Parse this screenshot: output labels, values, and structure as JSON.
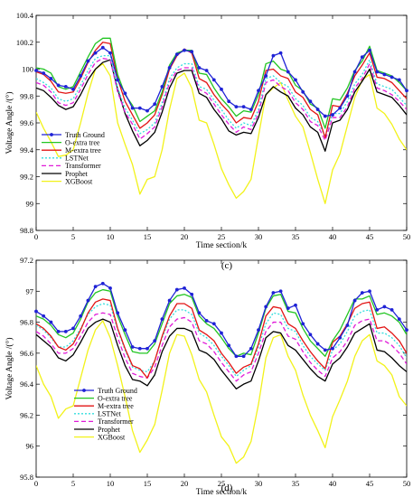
{
  "chart_data": [
    {
      "type": "line",
      "panel_label": "(c)",
      "xlabel": "Time section/k",
      "ylabel": "Voltage Angle /(°)",
      "xlim": [
        0,
        50
      ],
      "ylim": [
        98.8,
        100.4
      ],
      "xticks": [
        0,
        5,
        10,
        15,
        20,
        25,
        30,
        35,
        40,
        45,
        50
      ],
      "yticks": [
        98.8,
        99,
        99.2,
        99.4,
        99.6,
        99.8,
        100,
        100.2,
        100.4
      ],
      "ytick_labels": [
        "98.8",
        "99",
        "99.2",
        "99.4",
        "99.6",
        "99.8",
        "100",
        "100.2",
        "100.4"
      ],
      "legend_position": "left-middle",
      "x": [
        0,
        1,
        2,
        3,
        4,
        5,
        6,
        7,
        8,
        9,
        10,
        11,
        12,
        13,
        14,
        15,
        16,
        17,
        18,
        19,
        20,
        21,
        22,
        23,
        24,
        25,
        26,
        27,
        28,
        29,
        30,
        31,
        32,
        33,
        34,
        35,
        36,
        37,
        38,
        39,
        40,
        41,
        42,
        43,
        44,
        45,
        46,
        47,
        48,
        49,
        50
      ],
      "series": [
        {
          "name": "Truth Ground",
          "color": "#1f22d6",
          "marker": true,
          "values": [
            99.99,
            99.97,
            99.93,
            99.88,
            99.87,
            99.85,
            99.95,
            100.06,
            100.12,
            100.16,
            100.12,
            99.92,
            99.82,
            99.71,
            99.71,
            99.69,
            99.74,
            99.87,
            100.01,
            100.11,
            100.14,
            100.13,
            100.01,
            99.99,
            99.92,
            99.85,
            99.76,
            99.72,
            99.72,
            99.7,
            99.84,
            99.95,
            100.1,
            100.12,
            99.98,
            99.92,
            99.83,
            99.76,
            99.7,
            99.65,
            99.66,
            99.71,
            99.8,
            99.98,
            100.09,
            100.14,
            99.98,
            99.96,
            99.94,
            99.92,
            99.84
          ]
        },
        {
          "name": "O-extra tree",
          "color": "#22c522",
          "marker": false,
          "values": [
            100.01,
            100.0,
            99.97,
            99.87,
            99.85,
            99.87,
            99.98,
            100.09,
            100.19,
            100.23,
            100.23,
            99.96,
            99.81,
            99.73,
            99.61,
            99.65,
            99.69,
            99.83,
            100.03,
            100.12,
            100.14,
            100.14,
            99.97,
            99.96,
            99.86,
            99.78,
            99.72,
            99.65,
            99.69,
            99.68,
            99.81,
            100.04,
            100.06,
            100.0,
            99.98,
            99.88,
            99.84,
            99.74,
            99.71,
            99.56,
            99.78,
            99.77,
            99.86,
            99.99,
            100.06,
            100.17,
            99.99,
            99.97,
            99.95,
            99.9,
            99.84
          ]
        },
        {
          "name": "M-extra tree",
          "color": "#e21414",
          "marker": false,
          "values": [
            99.98,
            99.96,
            99.91,
            99.83,
            99.82,
            99.83,
            99.93,
            100.05,
            100.14,
            100.2,
            100.19,
            99.93,
            99.76,
            99.66,
            99.56,
            99.6,
            99.66,
            99.81,
            100.0,
            100.1,
            100.15,
            100.12,
            99.93,
            99.9,
            99.81,
            99.74,
            99.68,
            99.6,
            99.64,
            99.63,
            99.76,
            99.99,
            100.0,
            99.95,
            99.93,
            99.83,
            99.79,
            99.7,
            99.66,
            99.49,
            99.73,
            99.72,
            99.82,
            99.95,
            100.03,
            100.12,
            99.94,
            99.93,
            99.9,
            99.84,
            99.78
          ]
        },
        {
          "name": "LSTNet",
          "color": "#33dede",
          "marker": false,
          "dash": "2,2",
          "values": [
            99.93,
            99.9,
            99.86,
            99.78,
            99.76,
            99.78,
            99.88,
            99.99,
            100.08,
            100.1,
            100.1,
            99.86,
            99.71,
            99.62,
            99.52,
            99.55,
            99.6,
            99.75,
            99.93,
            100.01,
            100.04,
            100.04,
            99.87,
            99.85,
            99.77,
            99.7,
            99.62,
            99.56,
            99.6,
            99.58,
            99.7,
            99.93,
            99.95,
            99.9,
            99.87,
            99.78,
            99.73,
            99.64,
            99.61,
            99.5,
            99.67,
            99.67,
            99.76,
            99.89,
            99.96,
            100.07,
            99.89,
            99.87,
            99.85,
            99.79,
            99.73
          ]
        },
        {
          "name": "Transformer",
          "color": "#e01bd8",
          "marker": false,
          "dash": "5,3",
          "values": [
            99.9,
            99.88,
            99.83,
            99.75,
            99.73,
            99.75,
            99.85,
            99.96,
            100.05,
            100.08,
            100.07,
            99.83,
            99.68,
            99.59,
            99.48,
            99.52,
            99.57,
            99.72,
            99.9,
            99.99,
            100.01,
            100.01,
            99.85,
            99.82,
            99.74,
            99.66,
            99.59,
            99.53,
            99.57,
            99.55,
            99.67,
            99.9,
            99.92,
            99.87,
            99.84,
            99.75,
            99.7,
            99.61,
            99.58,
            99.47,
            99.64,
            99.64,
            99.72,
            99.86,
            99.93,
            100.04,
            99.86,
            99.84,
            99.81,
            99.76,
            99.7
          ]
        },
        {
          "name": "Prophet",
          "color": "#000000",
          "marker": false,
          "values": [
            99.86,
            99.84,
            99.79,
            99.73,
            99.7,
            99.72,
            99.81,
            99.92,
            100.0,
            100.05,
            100.07,
            99.85,
            99.67,
            99.54,
            99.43,
            99.47,
            99.53,
            99.68,
            99.86,
            99.97,
            99.99,
            99.99,
            99.82,
            99.79,
            99.7,
            99.63,
            99.54,
            99.51,
            99.53,
            99.52,
            99.64,
            99.81,
            99.87,
            99.83,
            99.8,
            99.71,
            99.66,
            99.57,
            99.53,
            99.39,
            99.6,
            99.62,
            99.7,
            99.83,
            99.91,
            100.0,
            99.83,
            99.81,
            99.79,
            99.73,
            99.66
          ]
        },
        {
          "name": "XGBoost",
          "color": "#f2f21a",
          "marker": false,
          "values": [
            99.68,
            99.56,
            99.46,
            99.35,
            99.36,
            99.4,
            99.6,
            99.82,
            100.0,
            100.04,
            99.95,
            99.6,
            99.44,
            99.29,
            99.07,
            99.18,
            99.2,
            99.4,
            99.7,
            99.93,
            99.97,
            99.86,
            99.62,
            99.6,
            99.44,
            99.26,
            99.14,
            99.04,
            99.09,
            99.18,
            99.5,
            99.81,
            99.86,
            99.9,
            99.77,
            99.65,
            99.57,
            99.38,
            99.18,
            99.0,
            99.25,
            99.37,
            99.58,
            99.79,
            99.92,
            99.96,
            99.71,
            99.67,
            99.59,
            99.48,
            99.4
          ]
        }
      ]
    },
    {
      "type": "line",
      "panel_label": "(d)",
      "xlabel": "Time section/k",
      "ylabel": "Voltage Angle /(°)",
      "xlim": [
        0,
        50
      ],
      "ylim": [
        95.8,
        97.2
      ],
      "xticks": [
        0,
        5,
        10,
        15,
        20,
        25,
        30,
        35,
        40,
        45,
        50
      ],
      "yticks": [
        95.8,
        96,
        96.2,
        96.4,
        96.6,
        96.8,
        97,
        97.2
      ],
      "ytick_labels": [
        "95.8",
        "96",
        "96.2",
        "96.4",
        "96.6",
        "96.8",
        "97",
        "97.2"
      ],
      "legend_position": "bottom-left",
      "x": [
        0,
        1,
        2,
        3,
        4,
        5,
        6,
        7,
        8,
        9,
        10,
        11,
        12,
        13,
        14,
        15,
        16,
        17,
        18,
        19,
        20,
        21,
        22,
        23,
        24,
        25,
        26,
        27,
        28,
        29,
        30,
        31,
        32,
        33,
        34,
        35,
        36,
        37,
        38,
        39,
        40,
        41,
        42,
        43,
        44,
        45,
        46,
        47,
        48,
        49,
        50
      ],
      "series": [
        {
          "name": "Truth Ground",
          "color": "#1f22d6",
          "marker": true,
          "values": [
            96.87,
            96.84,
            96.8,
            96.74,
            96.74,
            96.76,
            96.84,
            96.94,
            97.03,
            97.05,
            97.02,
            96.86,
            96.75,
            96.64,
            96.63,
            96.63,
            96.68,
            96.82,
            96.94,
            97.01,
            97.02,
            96.98,
            96.86,
            96.81,
            96.79,
            96.73,
            96.65,
            96.58,
            96.58,
            96.63,
            96.75,
            96.9,
            96.99,
            97.0,
            96.89,
            96.91,
            96.79,
            96.72,
            96.66,
            96.62,
            96.63,
            96.7,
            96.78,
            96.94,
            96.99,
            97.0,
            96.88,
            96.9,
            96.88,
            96.82,
            96.75
          ]
        },
        {
          "name": "O-extra tree",
          "color": "#22c522",
          "marker": false,
          "values": [
            96.84,
            96.82,
            96.78,
            96.72,
            96.7,
            96.73,
            96.82,
            96.93,
            96.99,
            97.01,
            97.0,
            96.84,
            96.72,
            96.61,
            96.6,
            96.6,
            96.66,
            96.79,
            96.92,
            96.97,
            96.98,
            96.96,
            96.84,
            96.79,
            96.76,
            96.7,
            96.63,
            96.58,
            96.6,
            96.59,
            96.73,
            96.89,
            96.97,
            96.98,
            96.87,
            96.86,
            96.76,
            96.68,
            96.63,
            96.58,
            96.68,
            96.75,
            96.85,
            96.95,
            96.95,
            96.97,
            96.85,
            96.86,
            96.84,
            96.8,
            96.72
          ]
        },
        {
          "name": "M-extra tree",
          "color": "#e21414",
          "marker": false,
          "values": [
            96.79,
            96.76,
            96.71,
            96.64,
            96.62,
            96.66,
            96.75,
            96.86,
            96.93,
            96.95,
            96.94,
            96.76,
            96.63,
            96.52,
            96.5,
            96.44,
            96.55,
            96.71,
            96.84,
            96.92,
            96.92,
            96.89,
            96.75,
            96.72,
            96.68,
            96.6,
            96.54,
            96.47,
            96.51,
            96.53,
            96.66,
            96.84,
            96.9,
            96.89,
            96.79,
            96.76,
            96.68,
            96.61,
            96.55,
            96.5,
            96.67,
            96.71,
            96.79,
            96.89,
            96.92,
            96.93,
            96.76,
            96.77,
            96.73,
            96.68,
            96.6
          ]
        },
        {
          "name": "LSTNet",
          "color": "#33dede",
          "marker": false,
          "dash": "2,2",
          "values": [
            96.78,
            96.75,
            96.7,
            96.64,
            96.64,
            96.68,
            96.76,
            96.85,
            96.9,
            96.92,
            96.91,
            96.75,
            96.62,
            96.51,
            96.49,
            96.48,
            96.55,
            96.7,
            96.82,
            96.88,
            96.88,
            96.85,
            96.73,
            96.7,
            96.65,
            96.58,
            96.52,
            96.45,
            96.49,
            96.52,
            96.64,
            96.79,
            96.86,
            96.85,
            96.76,
            96.74,
            96.65,
            96.58,
            96.53,
            96.49,
            96.62,
            96.66,
            96.74,
            96.84,
            96.87,
            96.88,
            96.73,
            96.73,
            96.7,
            96.65,
            96.57
          ]
        },
        {
          "name": "Transformer",
          "color": "#e01bd8",
          "marker": false,
          "dash": "5,3",
          "values": [
            96.74,
            96.71,
            96.66,
            96.6,
            96.6,
            96.63,
            96.71,
            96.8,
            96.85,
            96.86,
            96.85,
            96.7,
            96.57,
            96.47,
            96.45,
            96.44,
            96.51,
            96.65,
            96.77,
            96.82,
            96.83,
            96.8,
            96.68,
            96.66,
            96.61,
            96.54,
            96.48,
            96.42,
            96.46,
            96.48,
            96.6,
            96.74,
            96.8,
            96.8,
            96.71,
            96.69,
            96.61,
            96.54,
            96.49,
            96.45,
            96.57,
            96.61,
            96.68,
            96.78,
            96.81,
            96.82,
            96.68,
            96.68,
            96.65,
            96.6,
            96.53
          ]
        },
        {
          "name": "Prophet",
          "color": "#000000",
          "marker": false,
          "values": [
            96.72,
            96.68,
            96.64,
            96.57,
            96.55,
            96.59,
            96.67,
            96.76,
            96.8,
            96.82,
            96.8,
            96.65,
            96.52,
            96.43,
            96.42,
            96.39,
            96.46,
            96.61,
            96.71,
            96.76,
            96.76,
            96.74,
            96.62,
            96.6,
            96.56,
            96.49,
            96.43,
            96.37,
            96.4,
            96.42,
            96.55,
            96.7,
            96.74,
            96.73,
            96.65,
            96.62,
            96.56,
            96.5,
            96.45,
            96.42,
            96.53,
            96.57,
            96.64,
            96.73,
            96.76,
            96.79,
            96.62,
            96.61,
            96.57,
            96.52,
            96.48
          ]
        },
        {
          "name": "XGBoost",
          "color": "#f2f21a",
          "marker": false,
          "values": [
            96.52,
            96.4,
            96.32,
            96.18,
            96.24,
            96.26,
            96.44,
            96.62,
            96.75,
            96.81,
            96.7,
            96.52,
            96.32,
            96.1,
            95.96,
            96.04,
            96.14,
            96.36,
            96.6,
            96.72,
            96.71,
            96.59,
            96.43,
            96.35,
            96.2,
            96.06,
            96.0,
            95.89,
            95.93,
            96.03,
            96.27,
            96.57,
            96.7,
            96.72,
            96.58,
            96.49,
            96.33,
            96.2,
            96.1,
            95.99,
            96.19,
            96.3,
            96.42,
            96.58,
            96.68,
            96.72,
            96.55,
            96.52,
            96.46,
            96.32,
            96.26
          ]
        }
      ]
    }
  ]
}
